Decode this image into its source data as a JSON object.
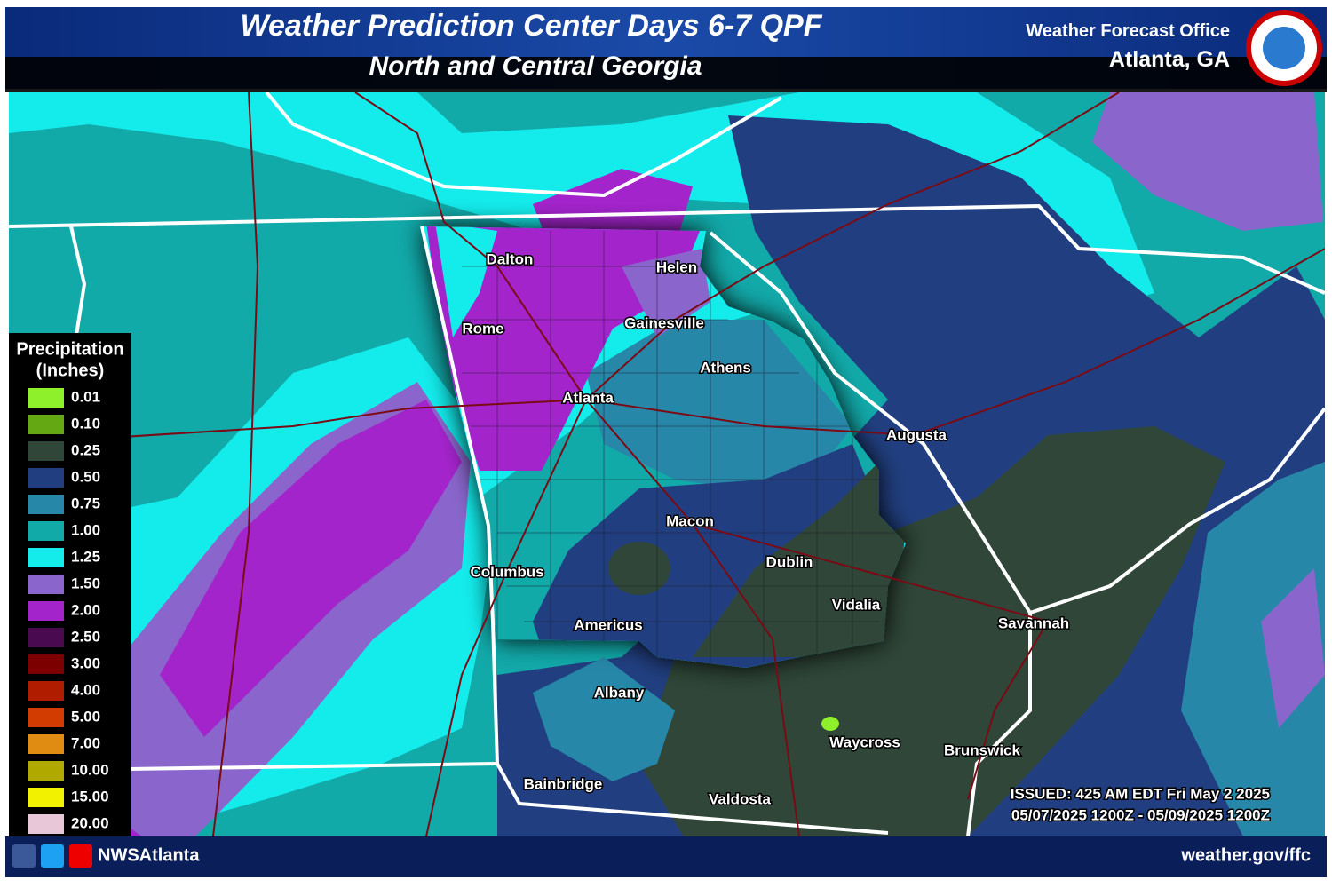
{
  "header": {
    "title": "Weather Prediction Center Days 6-7 QPF",
    "subtitle": "North and Central Georgia",
    "office": "Weather Forecast Office",
    "office_location": "Atlanta, GA"
  },
  "legend": {
    "title": "Precipitation",
    "units": "(Inches)",
    "items": [
      {
        "label": "0.01",
        "color": "#8ef02a"
      },
      {
        "label": "0.10",
        "color": "#64a814"
      },
      {
        "label": "0.25",
        "color": "#2f4638"
      },
      {
        "label": "0.50",
        "color": "#213f80"
      },
      {
        "label": "0.75",
        "color": "#2787a8"
      },
      {
        "label": "1.00",
        "color": "#12a9a9"
      },
      {
        "label": "1.25",
        "color": "#14ecec"
      },
      {
        "label": "1.50",
        "color": "#8a66cc"
      },
      {
        "label": "2.00",
        "color": "#a424cc"
      },
      {
        "label": "2.50",
        "color": "#4a0a50"
      },
      {
        "label": "3.00",
        "color": "#7c0000"
      },
      {
        "label": "4.00",
        "color": "#b01c00"
      },
      {
        "label": "5.00",
        "color": "#d23c00"
      },
      {
        "label": "7.00",
        "color": "#e08c12"
      },
      {
        "label": "10.00",
        "color": "#b0aa00"
      },
      {
        "label": "15.00",
        "color": "#f2f200"
      },
      {
        "label": "20.00",
        "color": "#e8c8d8"
      }
    ]
  },
  "cities": [
    "Dalton",
    "Helen",
    "Rome",
    "Gainesville",
    "Athens",
    "Atlanta",
    "Augusta",
    "Macon",
    "Columbus",
    "Dublin",
    "Vidalia",
    "Americus",
    "Savannah",
    "Albany",
    "Waycross",
    "Brunswick",
    "Bainbridge",
    "Valdosta"
  ],
  "issued": "ISSUED: 425 AM EDT Fri May 2 2025",
  "valid": "05/07/2025 1200Z - 05/09/2025 1200Z",
  "footer": {
    "social": "NWSAtlanta",
    "url": "weather.gov/ffc"
  }
}
